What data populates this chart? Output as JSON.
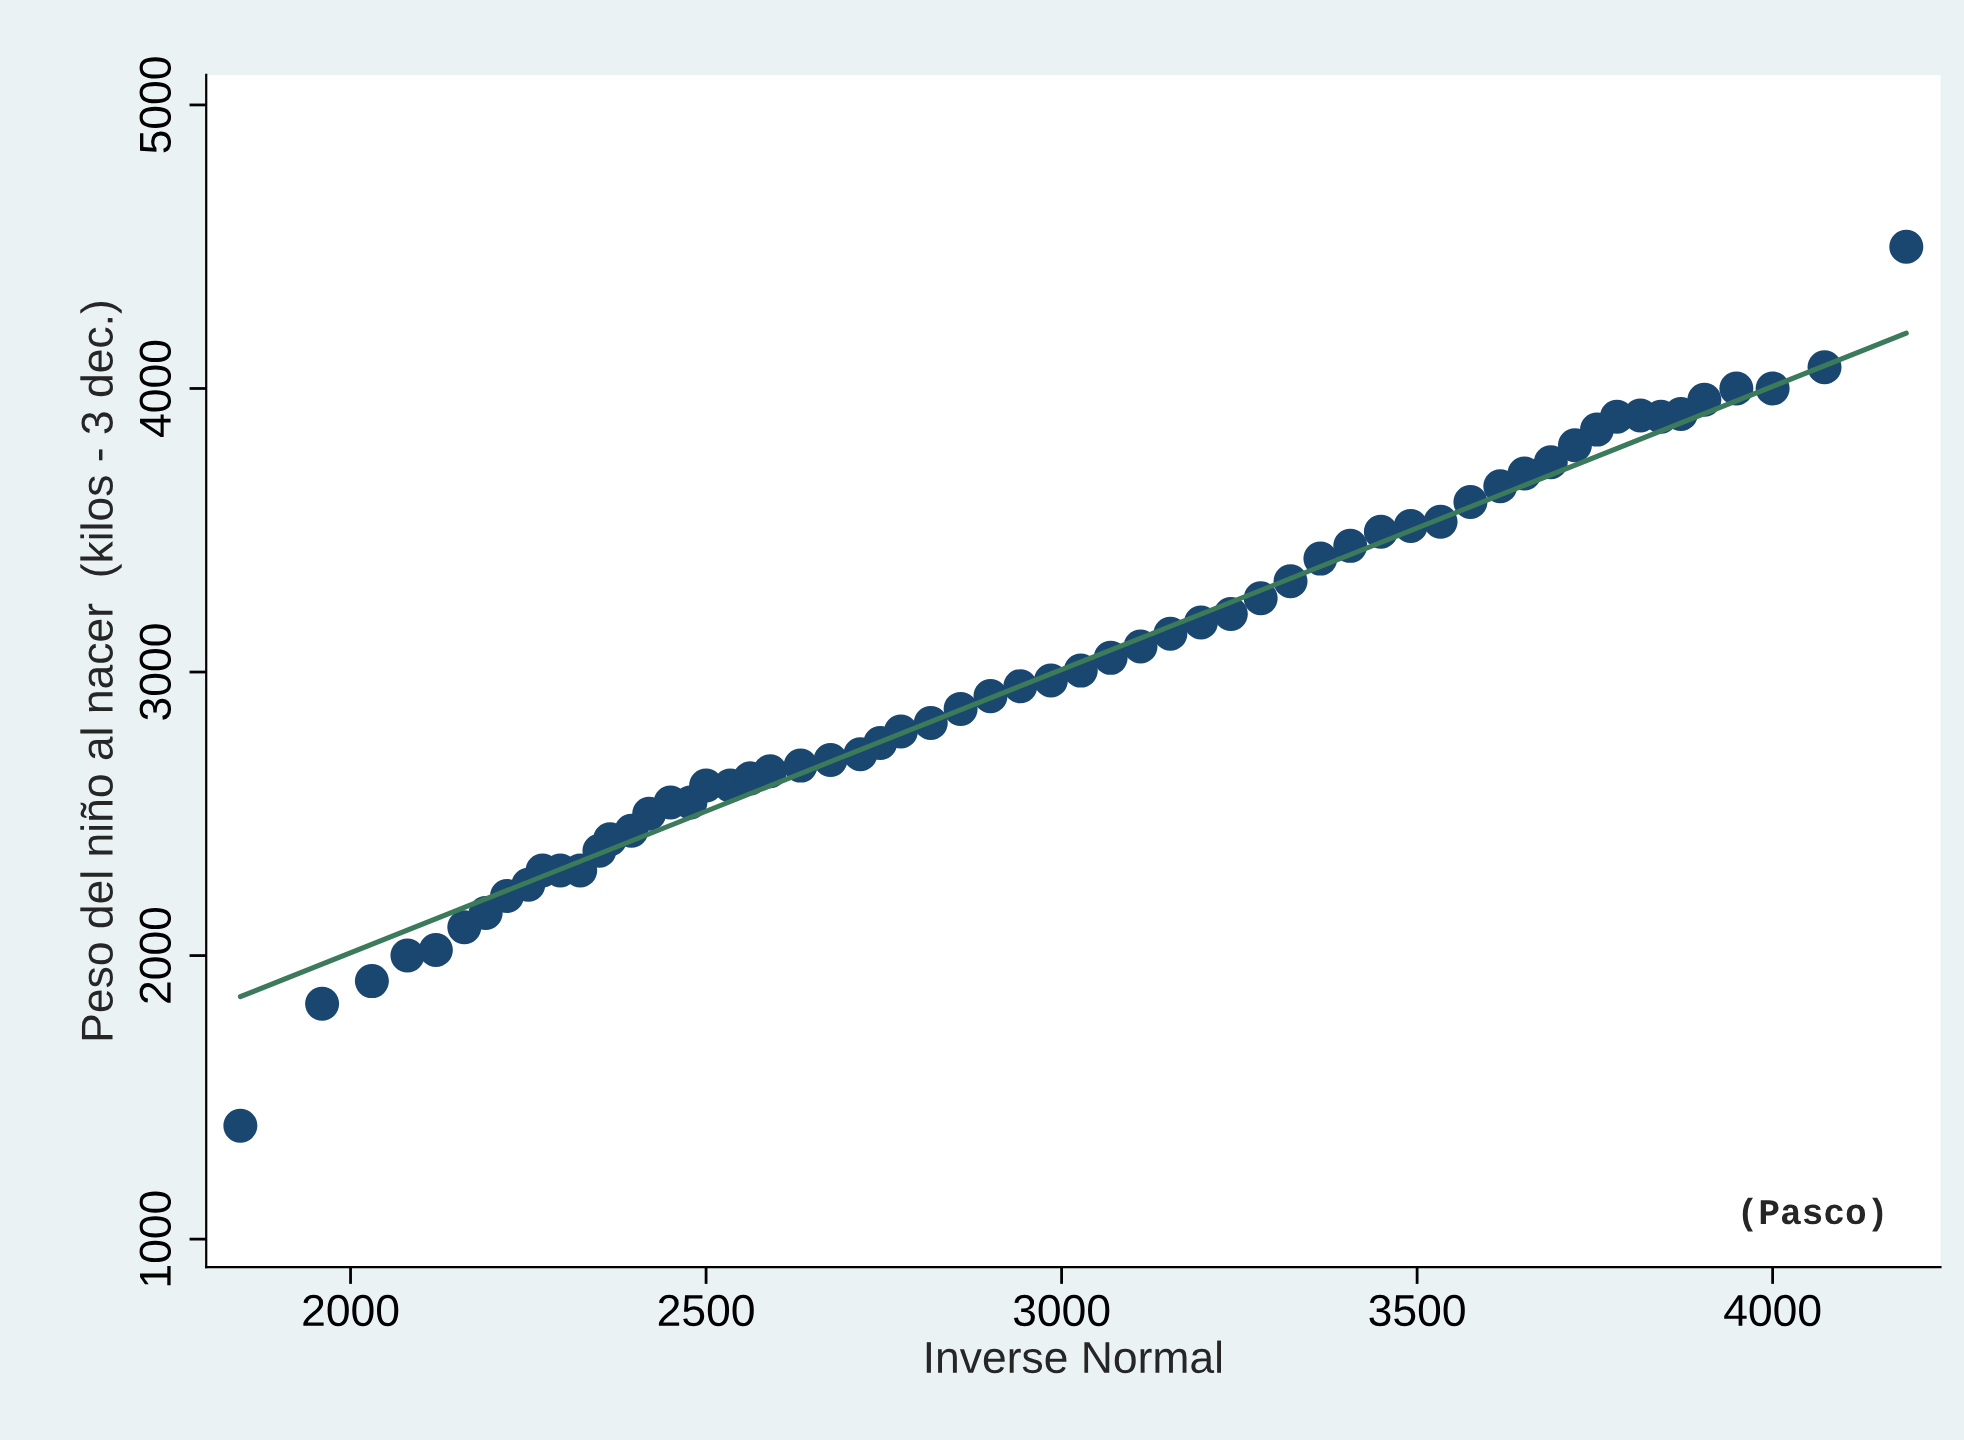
{
  "chart_data": {
    "type": "scatter",
    "xlabel": "Inverse Normal",
    "ylabel": "Peso del niño al nacer  (kilos - 3 dec.)",
    "annotations": [
      "(Pasco)"
    ],
    "xlim": [
      1797,
      4236
    ],
    "ylim": [
      901,
      5106
    ],
    "xticks": [
      2000,
      2500,
      3000,
      3500,
      4000
    ],
    "yticks": [
      1000,
      2000,
      3000,
      4000,
      5000
    ],
    "grid": false,
    "legend": false,
    "series": [
      {
        "marker": "circle",
        "color": "#1a476f",
        "x": [
          1845,
          1960,
          2030,
          2080,
          2120,
          2160,
          2190,
          2220,
          2250,
          2270,
          2295,
          2323,
          2350,
          2365,
          2395,
          2420,
          2450,
          2478,
          2500,
          2534,
          2562,
          2590,
          2633,
          2675,
          2717,
          2745,
          2774,
          2816,
          2858,
          2900,
          2942,
          2985,
          3027,
          3069,
          3111,
          3153,
          3196,
          3238,
          3280,
          3322,
          3364,
          3406,
          3449,
          3491,
          3533,
          3575,
          3617,
          3651,
          3688,
          3722,
          3753,
          3781,
          3814,
          3843,
          3871,
          3904,
          3949,
          4000,
          4073,
          4188
        ],
        "values": [
          1400,
          1830,
          1910,
          2000,
          2020,
          2100,
          2150,
          2210,
          2250,
          2300,
          2300,
          2300,
          2370,
          2410,
          2440,
          2500,
          2540,
          2540,
          2600,
          2600,
          2625,
          2650,
          2670,
          2690,
          2710,
          2750,
          2790,
          2820,
          2870,
          2915,
          2950,
          2970,
          3005,
          3050,
          3090,
          3135,
          3175,
          3205,
          3260,
          3320,
          3400,
          3445,
          3495,
          3515,
          3530,
          3600,
          3655,
          3700,
          3740,
          3800,
          3855,
          3900,
          3905,
          3900,
          3910,
          3960,
          4000,
          4000,
          4075,
          4500
        ]
      },
      {
        "type": "line",
        "color": "#3b7a5a",
        "x": [
          1845,
          4188
        ],
        "values": [
          1855,
          4195
        ]
      }
    ]
  }
}
